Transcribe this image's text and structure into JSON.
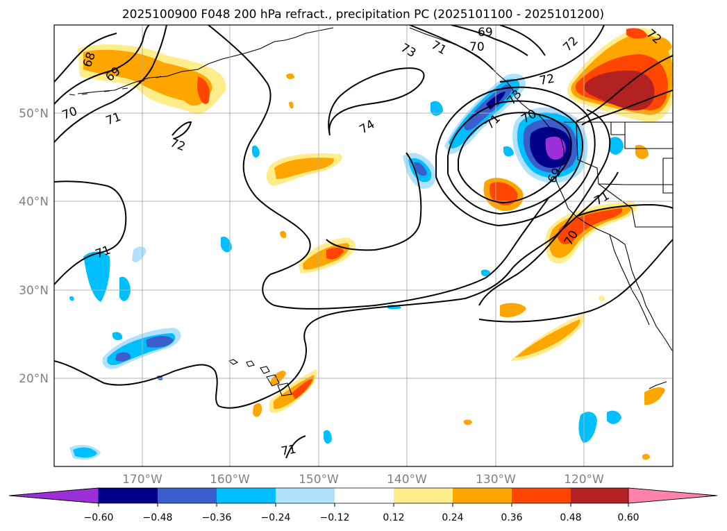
{
  "chart_data": {
    "type": "map",
    "title": "2025100900 F048 200 hPa refract., precipitation PC (2025101100 - 2025101200)",
    "lon_ticks": [
      "170°W",
      "160°W",
      "150°W",
      "140°W",
      "130°W",
      "120°W"
    ],
    "lat_ticks": [
      "50°N",
      "40°N",
      "30°N",
      "20°N"
    ],
    "lon_range": [
      -180,
      -110
    ],
    "lat_range": [
      10,
      60
    ],
    "colorbar": {
      "levels": [
        "−0.60",
        "−0.48",
        "−0.36",
        "−0.24",
        "−0.12",
        "0.12",
        "0.24",
        "0.36",
        "0.48",
        "0.60"
      ],
      "colors": [
        "#9b30d9",
        "#00008b",
        "#3a5fcd",
        "#00bfff",
        "#b0e2ff",
        "#ffffff",
        "#ffec8b",
        "#ffa500",
        "#ff4500",
        "#b22222",
        "#ff82ab"
      ],
      "extend": "both"
    },
    "contour_labels": [
      "68",
      "69",
      "70",
      "71",
      "72",
      "73",
      "74",
      "71",
      "72",
      "71",
      "70",
      "69",
      "72",
      "70",
      "71",
      "69",
      "70",
      "71",
      "72",
      "73",
      "71"
    ],
    "contour_values": [
      68,
      69,
      70,
      71,
      72,
      73,
      74
    ]
  }
}
